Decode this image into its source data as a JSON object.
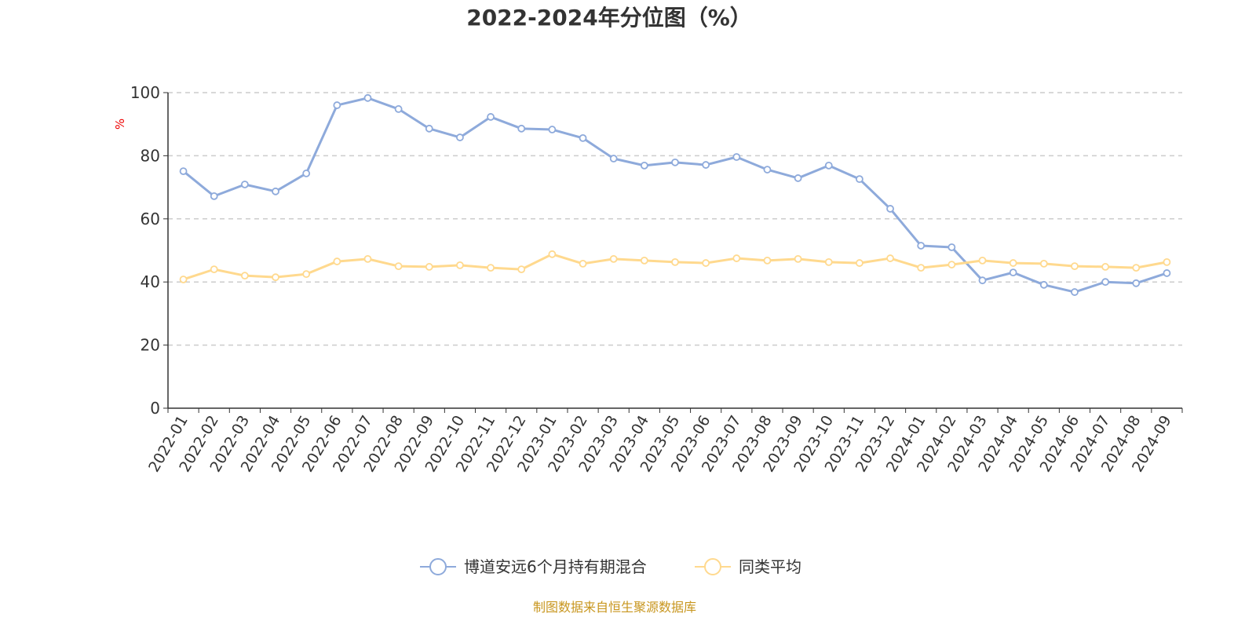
{
  "chart_data": {
    "type": "line",
    "title": "2022-2024年分位图（%）",
    "xlabel": "",
    "ylabel": "%",
    "ylim": [
      0,
      100
    ],
    "yticks": [
      0,
      20,
      40,
      60,
      80,
      100
    ],
    "grid": true,
    "legend_position": "bottom-center",
    "categories": [
      "2022-01",
      "2022-02",
      "2022-03",
      "2022-04",
      "2022-05",
      "2022-06",
      "2022-07",
      "2022-08",
      "2022-09",
      "2022-10",
      "2022-11",
      "2022-12",
      "2023-01",
      "2023-02",
      "2023-03",
      "2023-04",
      "2023-05",
      "2023-06",
      "2023-07",
      "2023-08",
      "2023-09",
      "2023-10",
      "2023-11",
      "2023-12",
      "2024-01",
      "2024-02",
      "2024-03",
      "2024-04",
      "2024-05",
      "2024-06",
      "2024-07",
      "2024-08",
      "2024-09"
    ],
    "series": [
      {
        "name": "博道安远6个月持有期混合",
        "color": "#8eaadb",
        "values": [
          75.1,
          67.2,
          70.9,
          68.7,
          74.4,
          96.0,
          98.3,
          94.8,
          88.6,
          85.8,
          92.3,
          88.6,
          88.3,
          85.6,
          79.1,
          76.9,
          77.9,
          77.1,
          79.6,
          75.6,
          72.9,
          76.9,
          72.6,
          63.2,
          51.5,
          51.0,
          40.5,
          43.0,
          39.1,
          36.8,
          40.0,
          39.6,
          42.8
        ]
      },
      {
        "name": "同类平均",
        "color": "#ffd98e",
        "values": [
          40.8,
          44.0,
          42.0,
          41.5,
          42.5,
          46.5,
          47.3,
          45.0,
          44.8,
          45.3,
          44.5,
          44.0,
          48.8,
          45.8,
          47.3,
          46.8,
          46.3,
          46.0,
          47.5,
          46.8,
          47.3,
          46.3,
          46.0,
          47.5,
          44.5,
          45.5,
          46.8,
          46.0,
          45.8,
          45.0,
          44.8,
          44.5,
          46.3
        ]
      }
    ]
  },
  "source": "制图数据来自恒生聚源数据库"
}
